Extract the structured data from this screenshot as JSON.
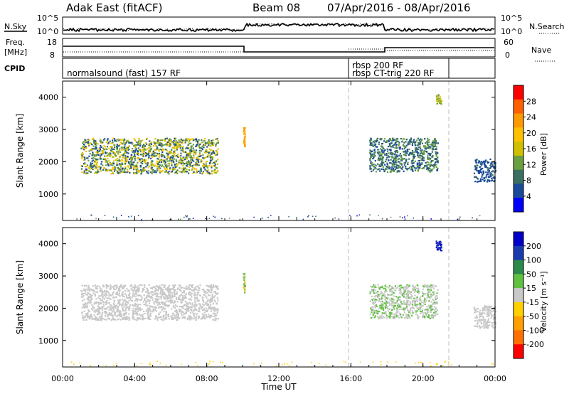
{
  "header": {
    "radar": "Adak East (fitACF)",
    "beam": "Beam 08",
    "dates": "07/Apr/2016 - 08/Apr/2016"
  },
  "top_panels": {
    "nsky_label": "N.Sky",
    "nsky_ticks": [
      "10^5",
      "10^0"
    ],
    "nsearch_label": "N.Search",
    "nsearch_ticks": [
      "10^5",
      "10^0"
    ],
    "freq_label": "Freq.",
    "freq_unit": "[MHz]",
    "freq_ticks": [
      "18",
      "8"
    ],
    "nave_label": "Nave",
    "nave_ticks": [
      "60",
      "0"
    ],
    "cpid_label": "CPID",
    "cpid_modes": [
      "normalsound (fast) 157 RF",
      "rbsp 200 RF",
      "rbsp CT-trig 220 RF"
    ]
  },
  "colors": {
    "frame": "#000000",
    "divider": "#bbbbbb",
    "power_scale": [
      "#ff0000",
      "#ff6000",
      "#ff9a00",
      "#ffc000",
      "#d0c000",
      "#6aa040",
      "#3a7060",
      "#1a4a9a",
      "#0000ff"
    ],
    "velocity_scale": [
      "#0000c8",
      "#1a3ab0",
      "#2a8a4a",
      "#60c040",
      "#c8c8c8",
      "#ffd000",
      "#ffa000",
      "#ff7000",
      "#ff0000"
    ]
  },
  "chart_data": [
    {
      "type": "heatmap",
      "panel": "power",
      "ylabel": "Slant Range [km]",
      "x_ticks": [
        "00:00",
        "04:00",
        "08:00",
        "12:00",
        "16:00",
        "20:00",
        "00:00"
      ],
      "xlim_hours": [
        0,
        24
      ],
      "ylim_km": [
        180,
        4500
      ],
      "y_ticks": [
        1000,
        2000,
        3000,
        4000
      ],
      "colorbar": {
        "label": "Power [dB]",
        "ticks": [
          "28",
          "24",
          "20",
          "16",
          "12",
          "8",
          "4"
        ],
        "range": [
          0,
          32
        ]
      },
      "series": [
        {
          "hours": [
            1.0,
            8.6
          ],
          "range_km": [
            1650,
            2750
          ],
          "value_db": [
            4,
            20
          ]
        },
        {
          "hours": [
            10.0,
            10.1
          ],
          "range_km": [
            2500,
            3100
          ],
          "value_db": [
            20,
            24
          ]
        },
        {
          "hours": [
            17.0,
            20.8
          ],
          "range_km": [
            1700,
            2750
          ],
          "value_db": [
            4,
            14
          ]
        },
        {
          "hours": [
            20.7,
            21.0
          ],
          "range_km": [
            3800,
            4100
          ],
          "value_db": [
            12,
            16
          ]
        },
        {
          "hours": [
            22.8,
            24.0
          ],
          "range_km": [
            1400,
            2100
          ],
          "value_db": [
            4,
            8
          ]
        }
      ]
    },
    {
      "type": "heatmap",
      "panel": "velocity",
      "ylabel": "Slant Range [km]",
      "xlabel": "Time UT",
      "x_ticks": [
        "00:00",
        "04:00",
        "08:00",
        "12:00",
        "16:00",
        "20:00",
        "00:00"
      ],
      "xlim_hours": [
        0,
        24
      ],
      "ylim_km": [
        180,
        4500
      ],
      "y_ticks": [
        1000,
        2000,
        3000,
        4000
      ],
      "colorbar": {
        "label": "Velocity [m s⁻¹]",
        "ticks": [
          "200",
          "100",
          "50",
          "15",
          "-15",
          "-50",
          "-100",
          "-200"
        ],
        "range": [
          -250,
          250
        ]
      },
      "series": [
        {
          "hours": [
            1.0,
            8.6
          ],
          "range_km": [
            1650,
            2750
          ],
          "value_ms": [
            -15,
            15
          ]
        },
        {
          "hours": [
            10.0,
            10.1
          ],
          "range_km": [
            2500,
            3100
          ],
          "value_ms": [
            -100,
            100
          ]
        },
        {
          "hours": [
            17.0,
            20.8
          ],
          "range_km": [
            1700,
            2750
          ],
          "value_ms": [
            -15,
            50
          ]
        },
        {
          "hours": [
            20.7,
            21.0
          ],
          "range_km": [
            3800,
            4100
          ],
          "value_ms": [
            150,
            250
          ]
        },
        {
          "hours": [
            22.8,
            24.0
          ],
          "range_km": [
            1400,
            2100
          ],
          "value_ms": [
            -15,
            15
          ]
        }
      ]
    }
  ]
}
